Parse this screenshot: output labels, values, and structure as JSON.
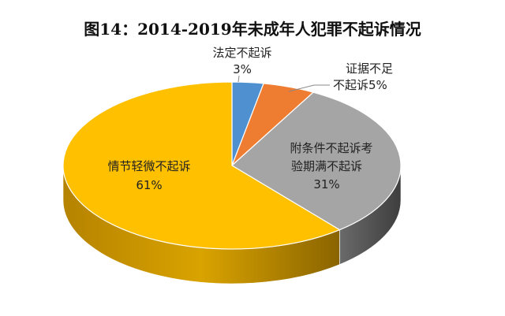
{
  "chart_data": {
    "type": "pie",
    "title": "图14：2014-2019年未成年人犯罪不起诉情况",
    "slices": [
      {
        "key": "legal",
        "label": "法定不起诉",
        "value": 3,
        "value_label": "3%",
        "color": "#4e90d0"
      },
      {
        "key": "insufficient",
        "label": "证据不足不起诉",
        "label_lines": [
          "证据不足",
          "不起诉5%"
        ],
        "value": 5,
        "value_label": "5%",
        "color": "#ef7d31"
      },
      {
        "key": "conditional",
        "label": "附条件不起诉考验期满不起诉",
        "label_lines": [
          "附条件不起诉考",
          "验期满不起诉"
        ],
        "value": 31,
        "value_label": "31%",
        "color": "#a5a5a5"
      },
      {
        "key": "minor",
        "label": "情节轻微不起诉",
        "value": 61,
        "value_label": "61%",
        "color": "#ffc000"
      }
    ]
  }
}
